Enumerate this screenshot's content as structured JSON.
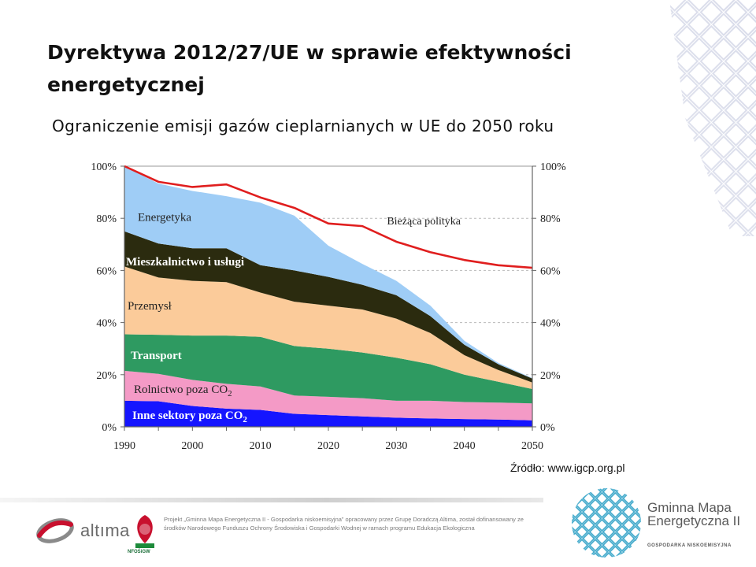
{
  "slide": {
    "title": "Dyrektywa 2012/27/UE w sprawie efektywności energetycznej",
    "subtitle": "Ograniczenie emisji gazów cieplarnianych w UE do 2050 roku",
    "source": "Źródło: www.igcp.org.pl"
  },
  "footer": {
    "altima_logo_text": "altıma",
    "nfos_logo_text": "NFOŚiGW",
    "project_text": "Projekt „Gminna Mapa Energetyczna II - Gospodarka niskoemisyjna” opracowany przez Grupę Doradczą Altima, został dofinansowany ze środków Narodowego Funduszu Ochrony Środowiska i Gospodarki Wodnej w ramach programu Edukacja Ekologiczna",
    "gme_name": "Gminna Mapa Energetyczna II",
    "gme_tagline": "GOSPODARKA NISKOEMISYJNA"
  },
  "colors": {
    "accent": "#e0dfe6",
    "current_policy_line": "#e01e1e",
    "gme_logo": "#3aa6c9",
    "altima_red": "#c8102e"
  },
  "chart_data": {
    "type": "area",
    "stacked": true,
    "title": "",
    "xlabel": "",
    "ylabel": "",
    "x": [
      1990,
      1995,
      2000,
      2005,
      2010,
      2015,
      2020,
      2025,
      2030,
      2035,
      2040,
      2045,
      2050
    ],
    "x_ticks": [
      "1990",
      "2000",
      "2010",
      "2020",
      "2030",
      "2040",
      "2050"
    ],
    "y_ticks": [
      "0%",
      "20%",
      "40%",
      "60%",
      "80%",
      "100%"
    ],
    "ylim": [
      0,
      100
    ],
    "xlim": [
      1990,
      2050
    ],
    "grid": "horizontal dashed",
    "series": [
      {
        "name": "Inne sektory poza CO2",
        "label_main": "Inne sektory poza CO",
        "label_sub": "2",
        "color": "#1515ff",
        "values": [
          10,
          9.8,
          8,
          7,
          6.5,
          5,
          4.5,
          4,
          3.5,
          3.2,
          3,
          2.8,
          2.5
        ]
      },
      {
        "name": "Rolnictwo poza CO2",
        "label_main": "Rolnictwo poza CO",
        "label_sub": "2",
        "color": "#f49ac6",
        "values": [
          11.5,
          10.5,
          10,
          9.5,
          9,
          7,
          7,
          7,
          6.5,
          6.8,
          6.5,
          6.5,
          6.5
        ]
      },
      {
        "name": "Transport",
        "label_main": "Transport",
        "label_sub": "",
        "color": "#2e9a61",
        "values": [
          14,
          15,
          17,
          18.5,
          19,
          19,
          18.5,
          17.5,
          16.5,
          14,
          10.5,
          8,
          5.5
        ]
      },
      {
        "name": "Przemysł",
        "label_main": "Przemysł",
        "label_sub": "",
        "color": "#fbcb9a",
        "values": [
          26,
          22,
          21,
          20.5,
          17,
          17,
          16.5,
          16.5,
          15,
          12,
          7.5,
          4.5,
          2.5
        ]
      },
      {
        "name": "Mieszkalnictwo i usługi",
        "label_main": "Mieszkalnictwo i usługi",
        "label_sub": "",
        "color": "#2b2b0f",
        "values": [
          13.5,
          13,
          12.5,
          13,
          10.5,
          12,
          11,
          9.5,
          9,
          6.5,
          4,
          2.2,
          1.5
        ]
      },
      {
        "name": "Energetyka",
        "label_main": "Energetyka",
        "label_sub": "",
        "color": "#9fcdf6",
        "values": [
          25,
          23,
          22,
          20,
          24,
          21,
          12,
          8,
          5.5,
          4,
          1.5,
          0.5,
          0.2
        ]
      }
    ],
    "lines": [
      {
        "name": "Bieżąca polityka",
        "color": "#e01e1e",
        "values": [
          100,
          94,
          92,
          93,
          88,
          84,
          78,
          77,
          71,
          67,
          64,
          62,
          61
        ]
      }
    ]
  }
}
